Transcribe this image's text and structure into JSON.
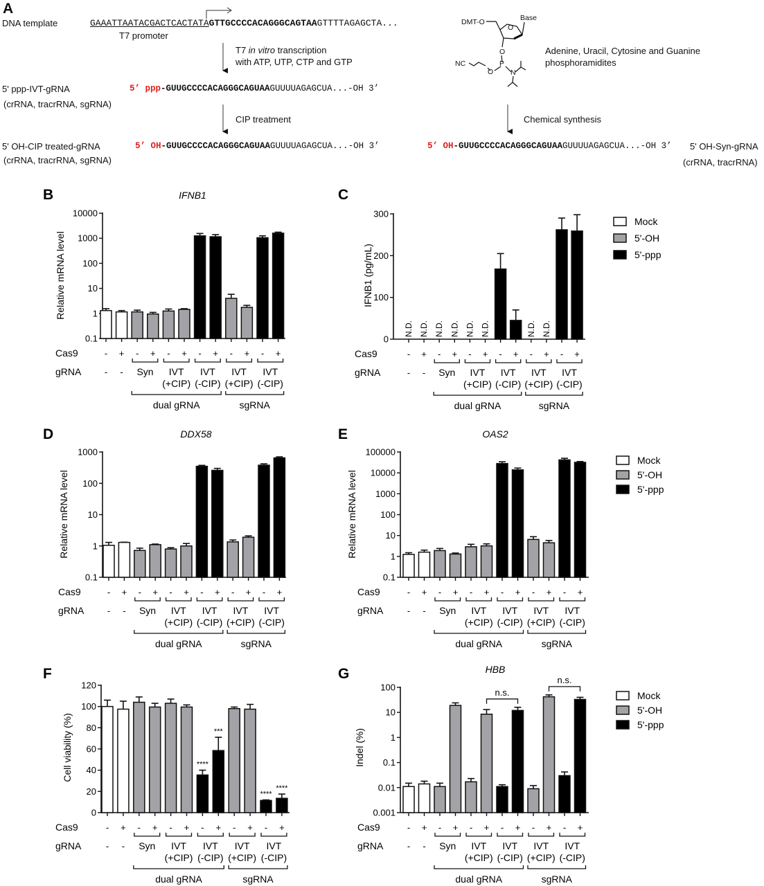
{
  "panel_a": {
    "letter": "A",
    "dna_label": "DNA template",
    "dna_promoter_seq": "GAAATTAATACGACTCACTATA",
    "dna_bold_seq": "GTTGCCCCACAGGGCAGTAA",
    "dna_tail_seq": "GTTTTAGAGCTA...",
    "promoter_label": "T7 promoter",
    "step1_line1_a": "T7 ",
    "step1_line1_italic": "in vitro",
    "step1_line1_b": " transcription",
    "step1_line2": "with ATP, UTP, CTP and GTP",
    "ppp_label": "5' ppp-IVT-gRNA",
    "ppp_sub": "(crRNA, tracrRNA, sgRNA)",
    "ppp_prefix": "5’ ppp",
    "rna_bold_seq": "-GUUGCCCCACAGGGCAGUAA",
    "rna_tail_seq": "GUUUUAGAGCUA...-OH 3’",
    "step2": "CIP treatment",
    "cip_label": "5' OH-CIP treated-gRNA",
    "cip_sub": "(crRNA, tracrRNA, sgRNA)",
    "oh_prefix": "5’ OH",
    "chem": {
      "dmt": "DMT-O",
      "base": "Base",
      "o_ring": "O",
      "o3": "O",
      "p": "P",
      "nc": "NC",
      "o_link": "O",
      "n": "N"
    },
    "phosphoramidite_line1": "Adenine, Uracil, Cytosine and Guanine",
    "phosphoramidite_line2": "phosphoramidites",
    "step3": "Chemical synthesis",
    "syn_label": "5' OH-Syn-gRNA",
    "syn_sub": "(crRNA, tracrRNA)",
    "red_color": "#e01e1e"
  },
  "x_labels": {
    "cas9_label": "Cas9",
    "grna_label": "gRNA",
    "cas9": [
      "-",
      "+",
      "-",
      "+",
      "-",
      "+",
      "-",
      "+",
      "-",
      "+",
      "-",
      "+"
    ],
    "grna_mock": [
      "-",
      "-"
    ],
    "grna_pairs": [
      [
        "Syn",
        ""
      ],
      [
        "IVT",
        "(+CIP)"
      ],
      [
        "IVT",
        "(-CIP)"
      ],
      [
        "IVT",
        "(+CIP)"
      ],
      [
        "IVT",
        "(-CIP)"
      ]
    ],
    "groups": [
      {
        "label": "dual gRNA",
        "pairs": [
          0,
          1,
          2
        ]
      },
      {
        "label": "sgRNA",
        "pairs": [
          3,
          4
        ]
      }
    ]
  },
  "legend": [
    {
      "label": "Mock",
      "color": "#ffffff"
    },
    {
      "label": "5'-OH",
      "color": "#a3a3a7"
    },
    {
      "label": "5'-ppp",
      "color": "#000000"
    }
  ],
  "bar_groups": [
    "Mock",
    "Mock",
    "5'-OH",
    "5'-OH",
    "5'-OH",
    "5'-OH",
    "5'-ppp",
    "5'-ppp",
    "5'-OH",
    "5'-OH",
    "5'-ppp",
    "5'-ppp"
  ],
  "chart_data": [
    {
      "panel": "B",
      "type": "bar",
      "title": "IFNB1",
      "ylabel": "Relative mRNA level",
      "yscale": "log",
      "ylim": [
        0.1,
        10000
      ],
      "yticks": [
        "0.1",
        "1",
        "10",
        "100",
        "1000",
        "10000"
      ],
      "values": [
        1.3,
        1.15,
        1.15,
        0.95,
        1.25,
        1.45,
        1250,
        1150,
        4,
        1.75,
        1050,
        1600
      ],
      "error_upper": [
        1.55,
        1.3,
        1.35,
        1.1,
        1.5,
        1.55,
        1550,
        1400,
        5.8,
        2.1,
        1250,
        1750
      ],
      "legend": false
    },
    {
      "panel": "C",
      "type": "bar",
      "title": "",
      "ylabel": "IFNB1 (pg/mL)",
      "yscale": "linear",
      "ylim": [
        0,
        300
      ],
      "yticks": [
        "0",
        "100",
        "200",
        "300"
      ],
      "values": [
        null,
        null,
        null,
        null,
        null,
        null,
        168,
        45,
        null,
        null,
        262,
        259
      ],
      "error_upper": [
        null,
        null,
        null,
        null,
        null,
        null,
        205,
        70,
        null,
        null,
        290,
        298
      ],
      "not_detected_label": "N.D.",
      "legend": true
    },
    {
      "panel": "D",
      "type": "bar",
      "title": "DDX58",
      "ylabel": "Relative mRNA level",
      "yscale": "log",
      "ylim": [
        0.1,
        1000
      ],
      "yticks": [
        "0.1",
        "1",
        "10",
        "100",
        "1000"
      ],
      "values": [
        1.05,
        1.3,
        0.72,
        1.1,
        0.8,
        1.0,
        350,
        260,
        1.35,
        1.9,
        380,
        650
      ],
      "error_upper": [
        1.3,
        1.32,
        0.85,
        1.15,
        0.88,
        1.2,
        375,
        300,
        1.55,
        2.1,
        420,
        700
      ],
      "legend": false
    },
    {
      "panel": "E",
      "type": "bar",
      "title": "OAS2",
      "ylabel": "Relative mRNA level",
      "yscale": "log",
      "ylim": [
        0.1,
        100000
      ],
      "yticks": [
        "0.1",
        "1",
        "10",
        "100",
        "1000",
        "10000",
        "100000"
      ],
      "values": [
        1.25,
        1.6,
        1.9,
        1.3,
        2.9,
        3.2,
        28000,
        14000,
        6.5,
        4.5,
        42000,
        32000
      ],
      "error_upper": [
        1.5,
        2.0,
        2.4,
        1.45,
        3.8,
        4.0,
        34000,
        17000,
        8.8,
        5.8,
        50000,
        35000
      ],
      "legend": true
    },
    {
      "panel": "F",
      "type": "bar",
      "title": "",
      "ylabel": "Cell viability (%)",
      "yscale": "linear",
      "ylim": [
        0,
        120
      ],
      "yticks": [
        "0",
        "20",
        "40",
        "60",
        "80",
        "100",
        "120"
      ],
      "values": [
        100,
        97.5,
        104,
        99.5,
        103,
        99.5,
        35.5,
        58.5,
        98,
        97.5,
        11.5,
        13.5
      ],
      "error_upper": [
        106,
        105,
        109,
        103,
        107,
        101.5,
        40,
        71,
        99.5,
        102,
        12,
        17.5
      ],
      "significance": [
        null,
        null,
        null,
        null,
        null,
        null,
        "****",
        "***",
        null,
        null,
        "****",
        "****"
      ],
      "legend": false
    },
    {
      "panel": "G",
      "type": "bar",
      "title": "HBB",
      "ylabel": "Indel (%)",
      "yscale": "log",
      "ylim": [
        0.001,
        100
      ],
      "yticks": [
        "0.001",
        "0.01",
        "0.1",
        "1",
        "10",
        "100"
      ],
      "values": [
        0.011,
        0.014,
        0.011,
        19,
        0.017,
        8.5,
        0.011,
        12,
        0.009,
        42,
        0.03,
        33
      ],
      "error_upper": [
        0.015,
        0.018,
        0.015,
        24,
        0.023,
        13,
        0.013,
        16,
        0.012,
        50,
        0.042,
        40
      ],
      "comparisons": [
        {
          "bars": [
            6,
            8
          ],
          "label": "n.s."
        },
        {
          "bars": [
            10,
            12
          ],
          "label": "n.s."
        }
      ],
      "legend": true
    }
  ]
}
